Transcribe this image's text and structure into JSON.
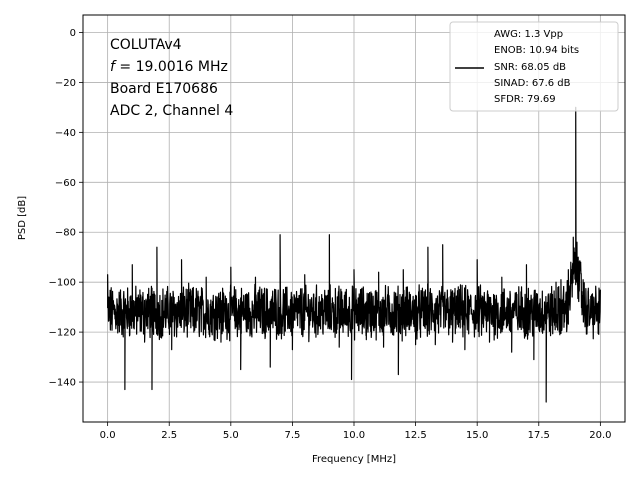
{
  "chart_data": {
    "type": "line",
    "xlabel": "Frequency [MHz]",
    "ylabel": "PSD [dB]",
    "xlim": [
      -1.0,
      21.0
    ],
    "ylim": [
      -156,
      7
    ],
    "xticks": [
      0.0,
      2.5,
      5.0,
      7.5,
      10.0,
      12.5,
      15.0,
      17.5,
      20.0
    ],
    "xtick_labels": [
      "0.0",
      "2.5",
      "5.0",
      "7.5",
      "10.0",
      "12.5",
      "15.0",
      "17.5",
      "20.0"
    ],
    "yticks": [
      0,
      -20,
      -40,
      -60,
      -80,
      -100,
      -120,
      -140
    ],
    "ytick_labels": [
      "0",
      "−20",
      "−40",
      "−60",
      "−80",
      "−100",
      "−120",
      "−140"
    ],
    "grid": true,
    "line_color": "#000000",
    "annotation": {
      "line1": "COLUTAv4",
      "line2_var": "f",
      "line2_rest": " = 19.0016 MHz",
      "line3": "Board E170686",
      "line4": "ADC 2, Channel 4"
    },
    "legend": {
      "position": "top-right",
      "entries": [
        "AWG: 1.3 Vpp",
        "ENOB: 10.94 bits",
        "SNR: 68.05 dB",
        "SINAD: 67.6 dB",
        "SFDR: 79.69"
      ]
    },
    "noise_floor": {
      "x_start": 0.0,
      "x_end": 20.0,
      "median": -112,
      "spread": 9
    },
    "series": [
      {
        "x": [
          0.0,
          0.05,
          0.1,
          0.7,
          1.0,
          1.5,
          1.8,
          2.0,
          2.6,
          3.0,
          3.5,
          4.0,
          4.6,
          5.0,
          5.4,
          5.6,
          6.0,
          6.6,
          7.0,
          7.5,
          8.0,
          9.0,
          9.4,
          9.9,
          10.0,
          10.5,
          11.0,
          11.2,
          11.8,
          12.0,
          12.5,
          13.0,
          13.3,
          13.6,
          14.0,
          14.5,
          15.0,
          15.5,
          16.0,
          16.4,
          17.0,
          17.3,
          17.5,
          17.8,
          18.2,
          18.4,
          18.6,
          18.7,
          18.8,
          18.9,
          18.95,
          19.0,
          19.05,
          19.1,
          19.2,
          19.3,
          19.5,
          19.7,
          20.0
        ],
        "y": [
          -97,
          -106,
          -110,
          -143,
          -93,
          -124,
          -143,
          -86,
          -127,
          -91,
          -120,
          -98,
          -124,
          -94,
          -135,
          -105,
          -98,
          -134,
          -81,
          -127,
          -97,
          -81,
          -126,
          -139,
          -95,
          -123,
          -96,
          -126,
          -137,
          -95,
          -125,
          -86,
          -125,
          -85,
          -124,
          -127,
          -91,
          -124,
          -98,
          -128,
          -93,
          -131,
          -118,
          -148,
          -100,
          -99,
          -105,
          -95,
          -92,
          -82,
          -88,
          -30,
          -84,
          -90,
          -92,
          -99,
          -105,
          -110,
          -103
        ]
      }
    ]
  }
}
